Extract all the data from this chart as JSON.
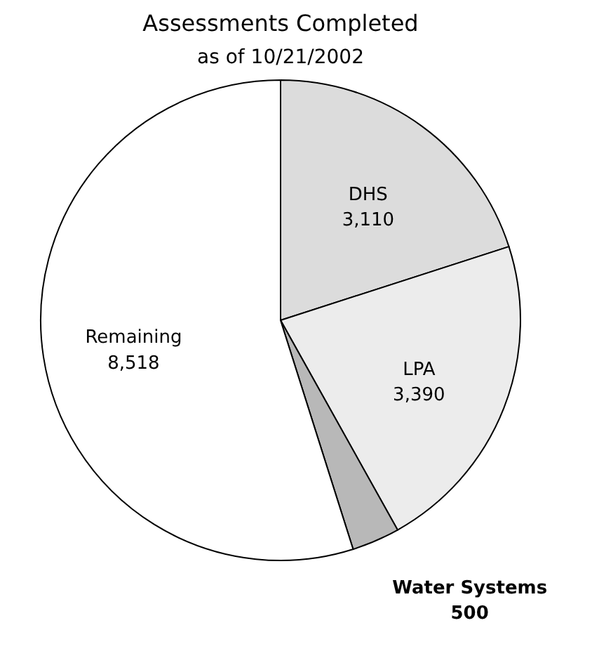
{
  "chart_data": {
    "type": "pie",
    "title": "Assessments Completed",
    "subtitle": "as of 10/21/2002",
    "categories": [
      "DHS",
      "LPA",
      "Water Systems",
      "Remaining"
    ],
    "values": [
      3110,
      3390,
      500,
      8518
    ],
    "colors": [
      "#dcdcdc",
      "#ececec",
      "#b8b8b8",
      "#ffffff"
    ],
    "value_labels": [
      "3,110",
      "3,390",
      "500",
      "8,518"
    ],
    "legend": false
  }
}
